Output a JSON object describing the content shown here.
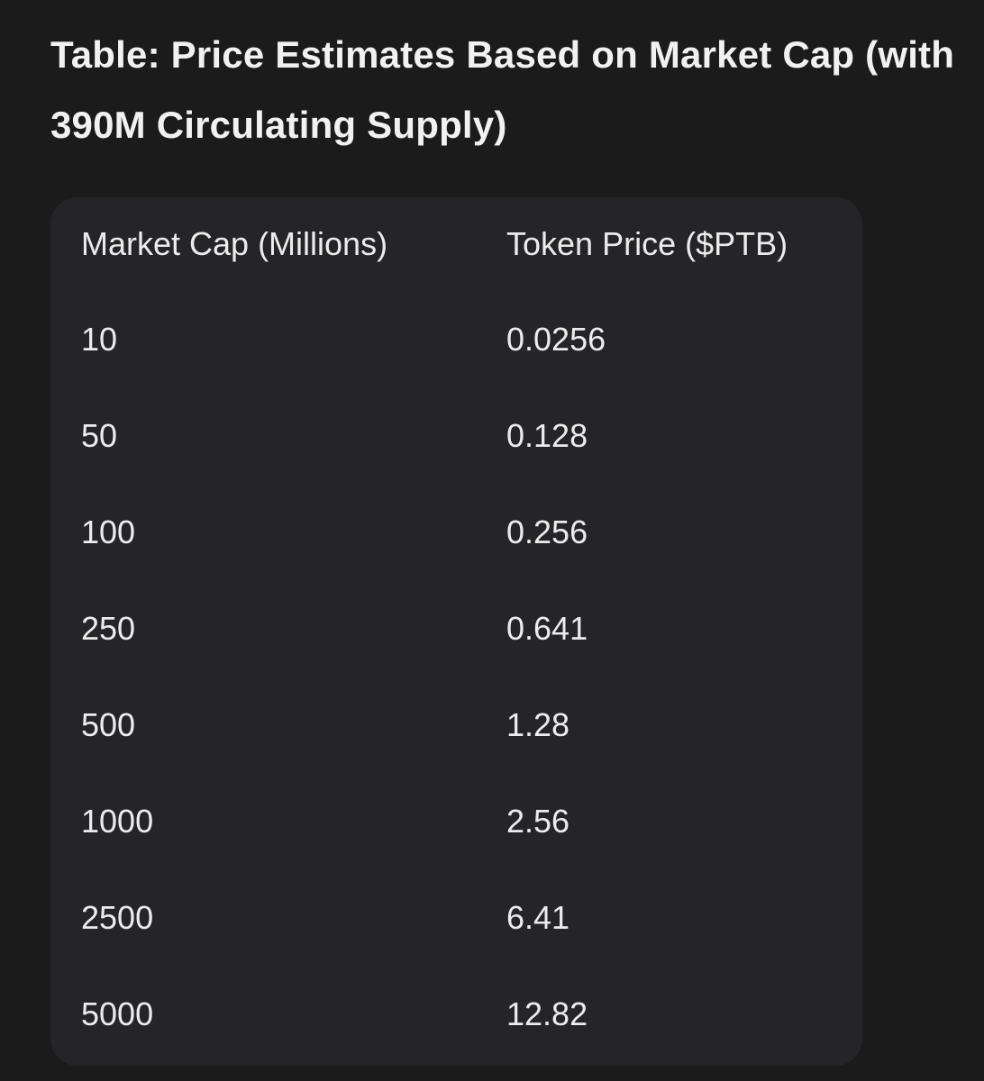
{
  "title": "Table: Price Estimates Based on Market Cap (with 390M Circulating Supply)",
  "table": {
    "headers": [
      "Market Cap (Millions)",
      "Token Price ($PTB)"
    ],
    "rows": [
      [
        "10",
        "0.0256"
      ],
      [
        "50",
        "0.128"
      ],
      [
        "100",
        "0.256"
      ],
      [
        "250",
        "0.641"
      ],
      [
        "500",
        "1.28"
      ],
      [
        "1000",
        "2.56"
      ],
      [
        "2500",
        "6.41"
      ],
      [
        "5000",
        "12.82"
      ]
    ]
  }
}
